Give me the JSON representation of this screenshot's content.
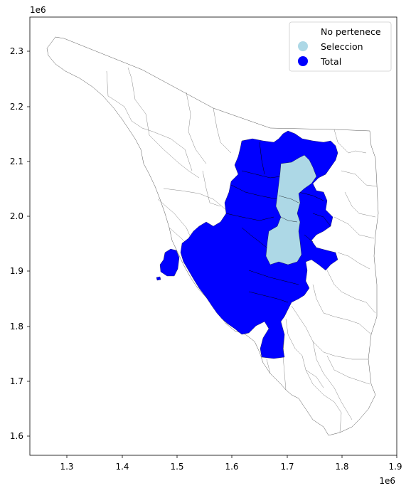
{
  "map": {
    "x_offset": "1e6",
    "y_offset": "1e6",
    "x_ticks": [
      "1.3",
      "1.4",
      "1.5",
      "1.6",
      "1.7",
      "1.8",
      "1.9"
    ],
    "y_ticks": [
      "2.3",
      "2.2",
      "2.1",
      "2.0",
      "1.9",
      "1.8",
      "1.7",
      "1.6"
    ],
    "xlim": [
      1.235,
      1.9
    ],
    "ylim": [
      1.565,
      2.36
    ]
  },
  "legend": {
    "placement": "top-right",
    "items": [
      {
        "label": "No pertenece",
        "color": "#ffffff"
      },
      {
        "label": "Seleccion",
        "color": "#add8e6"
      },
      {
        "label": "Total",
        "color": "#0000ff"
      }
    ]
  }
}
